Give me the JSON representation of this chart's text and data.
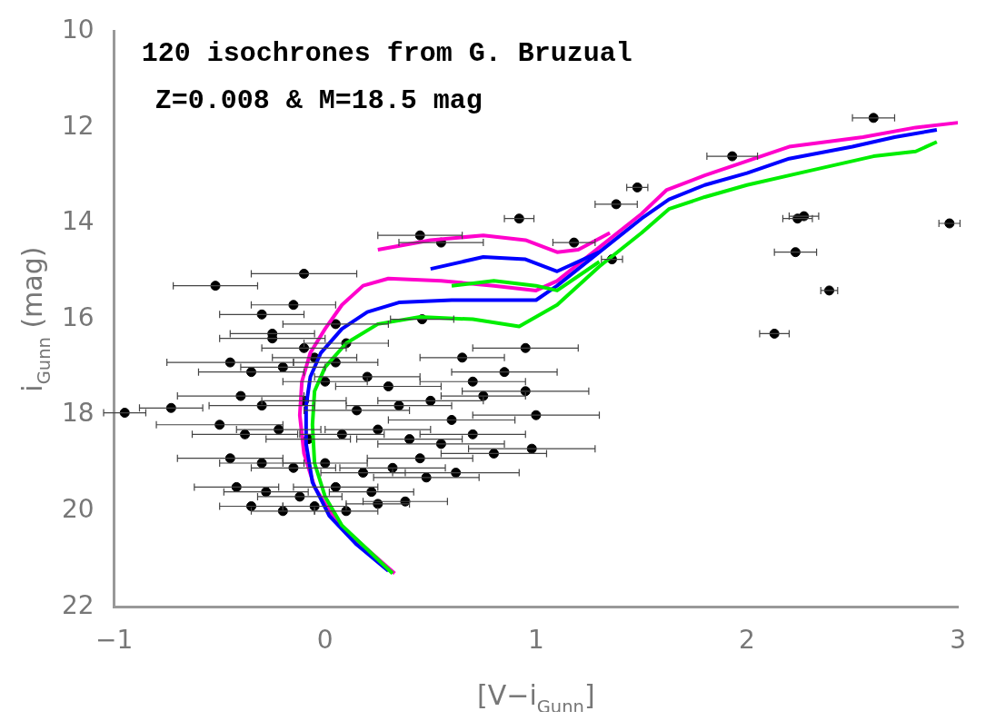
{
  "chart_data": {
    "type": "scatter",
    "title": "120 isochrones from G. Bruzual",
    "subtitle": "Z=0.008 & M=18.5 mag",
    "xlabel": "[V−i$_{Gunn}$]",
    "ylabel": "i$_{Gunn}$ (mag)",
    "xlim": [
      -1,
      3
    ],
    "ylim": [
      22,
      10
    ],
    "xticks": [
      {
        "value": -1,
        "label": "−1"
      },
      0,
      1,
      2,
      3
    ],
    "yticks": [
      10,
      12,
      14,
      16,
      18,
      20,
      22
    ],
    "legend": false,
    "grid": false,
    "series": [
      {
        "marker": "circle",
        "color": "#000000",
        "x": [
          2.6,
          1.93,
          1.48,
          1.38,
          0.92,
          2.27,
          2.24,
          2.96,
          2.23,
          1.36,
          2.39,
          2.13,
          0.45,
          0.55,
          1.18,
          -0.52,
          -0.1,
          0.46,
          -0.95,
          -0.73,
          0.95,
          0.85,
          0.7,
          0.95,
          1.0,
          0.98,
          -0.3,
          -0.15,
          0.05,
          -0.25,
          0.1,
          -0.05,
          -0.45,
          -0.35,
          -0.2,
          0.0,
          0.2,
          0.3,
          -0.4,
          -0.3,
          -0.1,
          0.15,
          0.35,
          0.5,
          0.6,
          -0.5,
          -0.38,
          -0.22,
          -0.08,
          0.08,
          0.25,
          0.4,
          0.55,
          0.7,
          0.8,
          -0.45,
          -0.3,
          -0.15,
          0.0,
          0.18,
          0.32,
          0.48,
          0.62,
          -0.42,
          -0.28,
          -0.12,
          0.05,
          0.22,
          0.38,
          -0.35,
          -0.2,
          -0.05,
          0.1,
          0.25,
          -0.25,
          -0.1,
          0.05,
          0.65,
          0.75,
          0.45
        ],
        "values": [
          11.8,
          12.6,
          13.25,
          13.6,
          13.9,
          13.85,
          13.9,
          14.0,
          14.6,
          14.75,
          15.4,
          16.3,
          14.25,
          14.4,
          14.4,
          15.3,
          15.05,
          16.0,
          17.95,
          17.85,
          16.6,
          17.1,
          17.3,
          17.5,
          18.0,
          18.7,
          15.9,
          15.7,
          16.1,
          16.4,
          16.5,
          16.8,
          16.9,
          17.1,
          17.0,
          17.3,
          17.2,
          17.4,
          17.6,
          17.8,
          17.7,
          17.9,
          17.8,
          17.7,
          18.1,
          18.2,
          18.4,
          18.3,
          18.5,
          18.4,
          18.3,
          18.5,
          18.6,
          18.4,
          18.8,
          18.9,
          19.0,
          19.1,
          19.0,
          19.2,
          19.1,
          19.3,
          19.2,
          19.5,
          19.6,
          19.7,
          19.5,
          19.6,
          19.8,
          19.9,
          20.0,
          19.9,
          20.0,
          19.85,
          16.3,
          16.6,
          16.9,
          16.8,
          17.6,
          18.9
        ],
        "xerrors": [
          0.1,
          0.12,
          0.05,
          0.1,
          0.07,
          0.07,
          0.07,
          0.05,
          0.1,
          0.05,
          0.04,
          0.07,
          0.2,
          0.2,
          0.1,
          0.2,
          0.25,
          0.15,
          0.1,
          0.15,
          0.25,
          0.25,
          0.25,
          0.3,
          0.3,
          0.3,
          0.2,
          0.2,
          0.25,
          0.25,
          0.2,
          0.2,
          0.3,
          0.25,
          0.2,
          0.2,
          0.25,
          0.25,
          0.3,
          0.25,
          0.2,
          0.25,
          0.25,
          0.25,
          0.3,
          0.3,
          0.25,
          0.2,
          0.2,
          0.2,
          0.25,
          0.25,
          0.3,
          0.25,
          0.25,
          0.25,
          0.2,
          0.2,
          0.2,
          0.2,
          0.25,
          0.25,
          0.3,
          0.2,
          0.2,
          0.2,
          0.2,
          0.2,
          0.2,
          0.15,
          0.15,
          0.15,
          0.15,
          0.15,
          0.2,
          0.2,
          0.2,
          0.2,
          0.2,
          0.25
        ]
      },
      {
        "type": "line",
        "color": "#ff00cc",
        "x": [
          0.33,
          0.2,
          0.05,
          -0.05,
          -0.1,
          -0.12,
          -0.11,
          -0.07,
          0,
          0.08,
          0.18,
          0.3,
          0.55,
          0.8,
          1.0,
          1.1,
          1.3,
          1.5,
          1.62,
          1.8,
          2.0,
          2.2,
          2.55,
          2.8,
          3.0
        ],
        "values": [
          21.3,
          20.8,
          20.2,
          19.5,
          18.8,
          18.0,
          17.3,
          16.7,
          16.2,
          15.7,
          15.3,
          15.15,
          15.2,
          15.3,
          15.4,
          15.2,
          14.5,
          13.8,
          13.3,
          13.0,
          12.7,
          12.4,
          12.2,
          12.0,
          11.9
        ]
      },
      {
        "type": "line",
        "color": "#ff00cc",
        "x": [
          0.25,
          0.5,
          0.75,
          0.95,
          1.1,
          1.2,
          1.35
        ],
        "values": [
          14.55,
          14.35,
          14.25,
          14.35,
          14.6,
          14.55,
          14.2
        ]
      },
      {
        "type": "line",
        "color": "#0000ff",
        "x": [
          0.3,
          0.15,
          0.02,
          -0.06,
          -0.09,
          -0.09,
          -0.07,
          -0.02,
          0.08,
          0.2,
          0.35,
          0.6,
          0.85,
          1.0,
          1.1,
          1.3,
          1.5,
          1.63,
          1.8,
          2.0,
          2.2,
          2.5,
          2.7,
          2.9
        ],
        "values": [
          21.25,
          20.7,
          20.1,
          19.4,
          18.6,
          17.8,
          17.2,
          16.7,
          16.2,
          15.85,
          15.65,
          15.6,
          15.6,
          15.6,
          15.3,
          14.6,
          13.9,
          13.5,
          13.2,
          12.95,
          12.65,
          12.4,
          12.2,
          12.05
        ]
      },
      {
        "type": "line",
        "color": "#0000ff",
        "x": [
          0.5,
          0.75,
          0.95,
          1.1,
          1.3
        ],
        "values": [
          14.95,
          14.7,
          14.75,
          15.0,
          14.6
        ]
      },
      {
        "type": "line",
        "color": "#00ee00",
        "x": [
          0.32,
          0.2,
          0.08,
          0,
          -0.05,
          -0.06,
          -0.05,
          0.0,
          0.1,
          0.25,
          0.45,
          0.7,
          0.92,
          1.1,
          1.3,
          1.5,
          1.63,
          1.8,
          2.0,
          2.3,
          2.6,
          2.8,
          2.9
        ],
        "values": [
          21.3,
          20.8,
          20.3,
          19.7,
          19.0,
          18.2,
          17.5,
          17.0,
          16.5,
          16.1,
          15.95,
          16.0,
          16.15,
          15.7,
          14.9,
          14.2,
          13.7,
          13.45,
          13.2,
          12.9,
          12.6,
          12.5,
          12.3
        ]
      },
      {
        "type": "line",
        "color": "#00ee00",
        "x": [
          0.6,
          0.8,
          1.0,
          1.1,
          1.3
        ],
        "values": [
          15.3,
          15.2,
          15.3,
          15.4,
          14.8
        ]
      }
    ]
  }
}
